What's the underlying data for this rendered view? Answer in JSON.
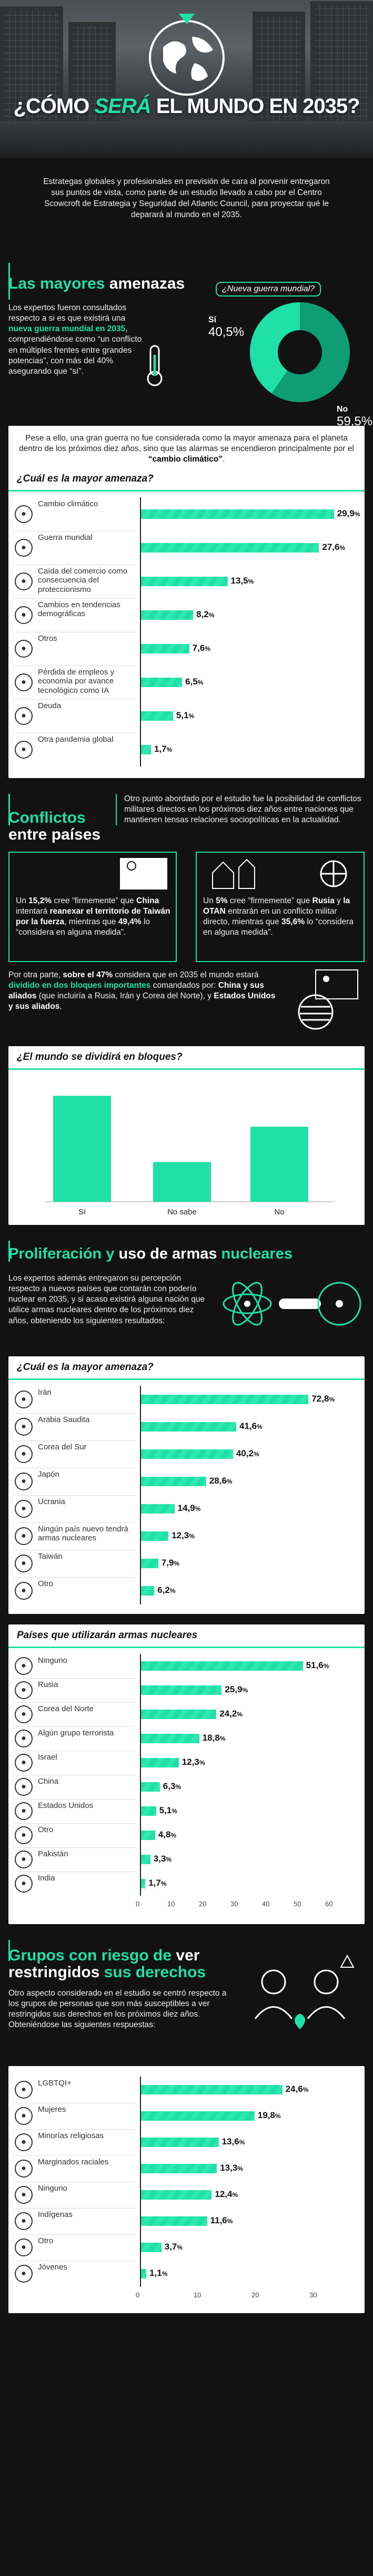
{
  "hero": {
    "title_pre": "¿CÓMO ",
    "title_accent": "SERÁ",
    "title_post": " EL MUNDO EN 2035?"
  },
  "intro": "Estrategas globales y profesionales en previsión de cara al porvenir entregaron sus puntos de vista, como parte de un estudio llevado a cabo por el Centro Scowcroft de Estrategia y Seguridad del Atlantic Council, para proyectar qué le deparará al mundo en el 2035.",
  "s1": {
    "title_g": "Las mayores ",
    "title_w": "amenazas",
    "text_a": "Los expertos fueron consultados respecto a si es que existirá una ",
    "text_b": "nueva guerra mundial en 2035",
    "text_c": ", comprendiéndose como “un conflicto en múltiples frentes entre grandes potencias”, con más del 40% asegurando que “sí”.",
    "pie_title": "¿Nueva guerra mundial?",
    "pie_yes_label": "Sí",
    "pie_yes_value": "40,5%",
    "pie_no_label": "No",
    "pie_no_value": "59,5%",
    "note_a": "Pese a ello, una gran guerra no fue considerada como la mayor amenaza para el planeta dentro de los próximos diez años, sino que las alarmas se encendieron principalmente por el ",
    "note_b": "“cambio climático”",
    "note_c": "."
  },
  "threats": {
    "title": "¿Cuál es la mayor amenaza?",
    "items": [
      {
        "label": "Cambio climático",
        "value": "29,9",
        "pct": 29.9,
        "icon": "thermometer-icon"
      },
      {
        "label": "Guerra mundial",
        "value": "27,6",
        "pct": 27.6,
        "icon": "tank-icon"
      },
      {
        "label": "Caída del comercio como consecuencia del proteccionismo",
        "value": "13,5",
        "pct": 13.5,
        "icon": "shop-icon"
      },
      {
        "label": "Cambios en tendencias demográficas",
        "value": "8,2",
        "pct": 8.2,
        "icon": "people-icon"
      },
      {
        "label": "Otros",
        "value": "7,6",
        "pct": 7.6,
        "icon": "dots-icon"
      },
      {
        "label": "Pérdida de empleos y economía por avance tecnológico como IA",
        "value": "6,5",
        "pct": 6.5,
        "icon": "robot-icon"
      },
      {
        "label": "Deuda",
        "value": "5,1",
        "pct": 5.1,
        "icon": "money-icon"
      },
      {
        "label": "Otra pandemia global",
        "value": "1,7",
        "pct": 1.7,
        "icon": "virus-icon"
      }
    ],
    "unit": "%"
  },
  "s2": {
    "title_g": "Conflictos ",
    "title_w": "entre países",
    "text": "Otro punto abordado por el estudio fue la posibilidad de conflictos militares directos en los próximos diez años entre naciones que mantienen tensas relaciones sociopolíticas en la actualidad.",
    "china_a": "Un ",
    "china_b": "15,2%",
    "china_c": " cree “firmemente” que ",
    "china_d": "China",
    "china_e": " intentará ",
    "china_f": "reanexar el territorio de Taiwán por la fuerza",
    "china_g": ", mientras que ",
    "china_h": "49,4%",
    "china_i": " lo “considera en alguna medida”.",
    "russia_a": "Un ",
    "russia_b": "5%",
    "russia_c": " cree “firmemente” que ",
    "russia_d": "Rusia",
    "russia_e": " y ",
    "russia_f": "la OTAN",
    "russia_g": " entrarán en un conflicto militar directo, mientras que ",
    "russia_h": "35,6%",
    "russia_i": " lo “considera en alguna medida”.",
    "bloc_a": "Por otra parte, ",
    "bloc_b": "sobre el 47%",
    "bloc_c": " considera que en 2035 el mundo estará ",
    "bloc_d": "dividido en dos bloques importantes",
    "bloc_e": " comandados por: ",
    "bloc_f": "China y sus aliados",
    "bloc_g": " (que incluiría a Rusia, Irán y Corea del Norte), y ",
    "bloc_h": "Estados Unidos y sus aliados",
    "bloc_i": "."
  },
  "chart_data": [
    {
      "type": "bar",
      "title": "¿El mundo se dividirá en bloques?",
      "categories": [
        "Sí",
        "No sabe",
        "No"
      ],
      "values": [
        48,
        18,
        34
      ],
      "ylim": [
        0,
        50
      ]
    },
    {
      "type": "bar",
      "title": "¿Cuál es la mayor amenaza?",
      "categories": [
        "Irán",
        "Arabia Saudita",
        "Corea del Sur",
        "Japón",
        "Ucrania",
        "Ningún país nuevo tendrá armas nucleares",
        "Taiwán",
        "Otro"
      ],
      "values": [
        72.8,
        41.6,
        40.2,
        28.6,
        14.9,
        12.3,
        7.9,
        6.2
      ]
    },
    {
      "type": "bar",
      "title": "Países que utilizarán armas nucleares",
      "categories": [
        "Ninguno",
        "Rusia",
        "Corea del Norte",
        "Algún grupo terrorista",
        "Israel",
        "China",
        "Estados Unidos",
        "Otro",
        "Pakistán",
        "India"
      ],
      "values": [
        51.6,
        25.9,
        24.2,
        18.8,
        12.3,
        6.3,
        5.1,
        4.8,
        3.3,
        1.7
      ],
      "xlim": [
        0,
        60
      ],
      "xticks": [
        "0",
        "10",
        "20",
        "30",
        "40",
        "50",
        "60"
      ]
    },
    {
      "type": "bar",
      "title": "Grupos con riesgo",
      "categories": [
        "LGBTQI+",
        "Mujeres",
        "Minorías religiosas",
        "Marginados raciales",
        "Ninguno",
        "Indígenas",
        "Otro",
        "Jóvenes"
      ],
      "values": [
        24.6,
        19.8,
        13.6,
        13.3,
        12.4,
        11.6,
        3.7,
        1.1
      ],
      "xlim": [
        0,
        30
      ],
      "xticks": [
        "0",
        "10",
        "20",
        "30"
      ]
    }
  ],
  "blocs": {
    "title": "¿El mundo se dividirá en bloques?",
    "labels": [
      "Sí",
      "No sabe",
      "No"
    ],
    "values": [
      48,
      18,
      34
    ]
  },
  "s3": {
    "title_g": "Proliferación y ",
    "title_w": "uso de armas ",
    "title_g2": "nucleares",
    "text": "Los expertos además entregaron su percepción respecto a nuevos países que contarán con poderío nuclear en 2035, y si acaso existirá alguna nación que utilice armas nucleares dentro de los próximos diez años, obteniendo los siguientes resultados:"
  },
  "nuclear": {
    "title": "¿Cuál es la mayor amenaza?",
    "items": [
      {
        "label": "Irán",
        "value": "72,8",
        "pct": 72.8
      },
      {
        "label": "Arabia Saudita",
        "value": "41,6",
        "pct": 41.6
      },
      {
        "label": "Corea del Sur",
        "value": "40,2",
        "pct": 40.2
      },
      {
        "label": "Japón",
        "value": "28,6",
        "pct": 28.6
      },
      {
        "label": "Ucrania",
        "value": "14,9",
        "pct": 14.9
      },
      {
        "label": "Ningún país nuevo tendrá armas nucleares",
        "value": "12,3",
        "pct": 12.3
      },
      {
        "label": "Taiwán",
        "value": "7,9",
        "pct": 7.9
      },
      {
        "label": "Otro",
        "value": "6,2",
        "pct": 6.2
      }
    ]
  },
  "users": {
    "title": "Países que utilizarán armas nucleares",
    "items": [
      {
        "label": "Ninguno",
        "value": "51,6",
        "pct": 51.6
      },
      {
        "label": "Rusia",
        "value": "25,9",
        "pct": 25.9
      },
      {
        "label": "Corea del Norte",
        "value": "24,2",
        "pct": 24.2
      },
      {
        "label": "Algún grupo terrorista",
        "value": "18,8",
        "pct": 18.8
      },
      {
        "label": "Israel",
        "value": "12,3",
        "pct": 12.3
      },
      {
        "label": "China",
        "value": "6,3",
        "pct": 6.3
      },
      {
        "label": "Estados Unidos",
        "value": "5,1",
        "pct": 5.1
      },
      {
        "label": "Otro",
        "value": "4,8",
        "pct": 4.8
      },
      {
        "label": "Pakistán",
        "value": "3,3",
        "pct": 3.3
      },
      {
        "label": "India",
        "value": "1,7",
        "pct": 1.7
      }
    ],
    "ticks": [
      "0",
      "10",
      "20",
      "30",
      "40",
      "50",
      "60"
    ]
  },
  "s4": {
    "title_g": "Grupos con riesgo de ",
    "title_w": "ver restringidos ",
    "title_g2": "sus derechos",
    "text": "Otro aspecto considerado en el estudio se centró respecto a los grupos de personas que son más susceptibles a ver restringidos sus derechos en los próximos diez años. Obteniéndose las siguientes respuestas:"
  },
  "groups": {
    "items": [
      {
        "label": "LGBTQI+",
        "value": "24,6",
        "pct": 24.6
      },
      {
        "label": "Mujeres",
        "value": "19,8",
        "pct": 19.8
      },
      {
        "label": "Minorías religiosas",
        "value": "13,6",
        "pct": 13.6
      },
      {
        "label": "Marginados raciales",
        "value": "13,3",
        "pct": 13.3
      },
      {
        "label": "Ninguno",
        "value": "12,4",
        "pct": 12.4
      },
      {
        "label": "Indígenas",
        "value": "11,6",
        "pct": 11.6
      },
      {
        "label": "Otro",
        "value": "3,7",
        "pct": 3.7
      },
      {
        "label": "Jóvenes",
        "value": "1,1",
        "pct": 1.1
      }
    ],
    "ticks": [
      "0",
      "10",
      "20",
      "30"
    ]
  }
}
